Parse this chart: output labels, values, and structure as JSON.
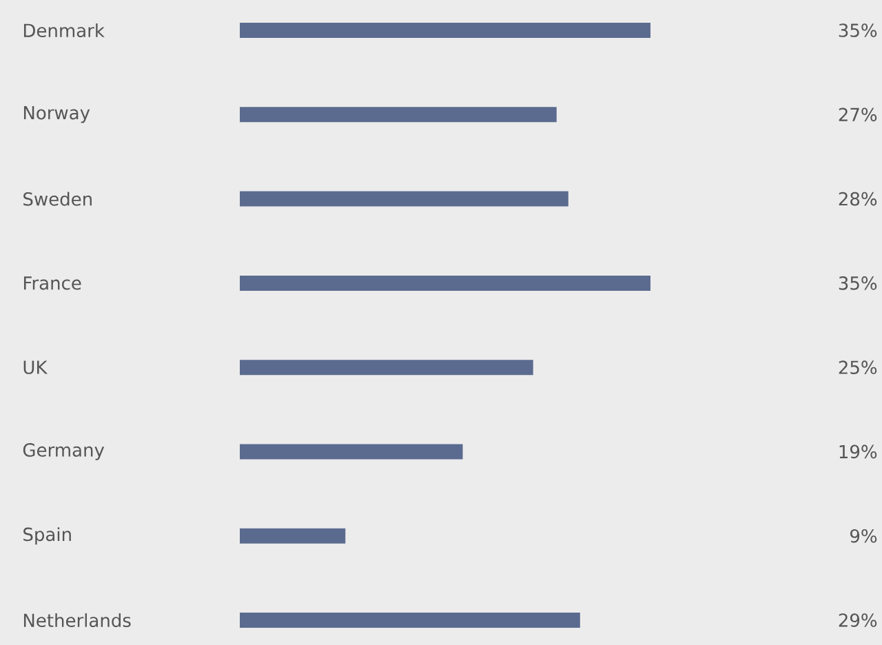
{
  "chart_data": {
    "type": "bar",
    "orientation": "horizontal",
    "categories": [
      "Denmark",
      "Norway",
      "Sweden",
      "France",
      "UK",
      "Germany",
      "Spain",
      "Netherlands"
    ],
    "values": [
      35,
      27,
      28,
      35,
      25,
      19,
      9,
      29
    ],
    "value_labels": [
      "35%",
      "27%",
      "28%",
      "35%",
      "25%",
      "19%",
      "9%",
      "29%"
    ],
    "color": "#5b6b8f"
  }
}
